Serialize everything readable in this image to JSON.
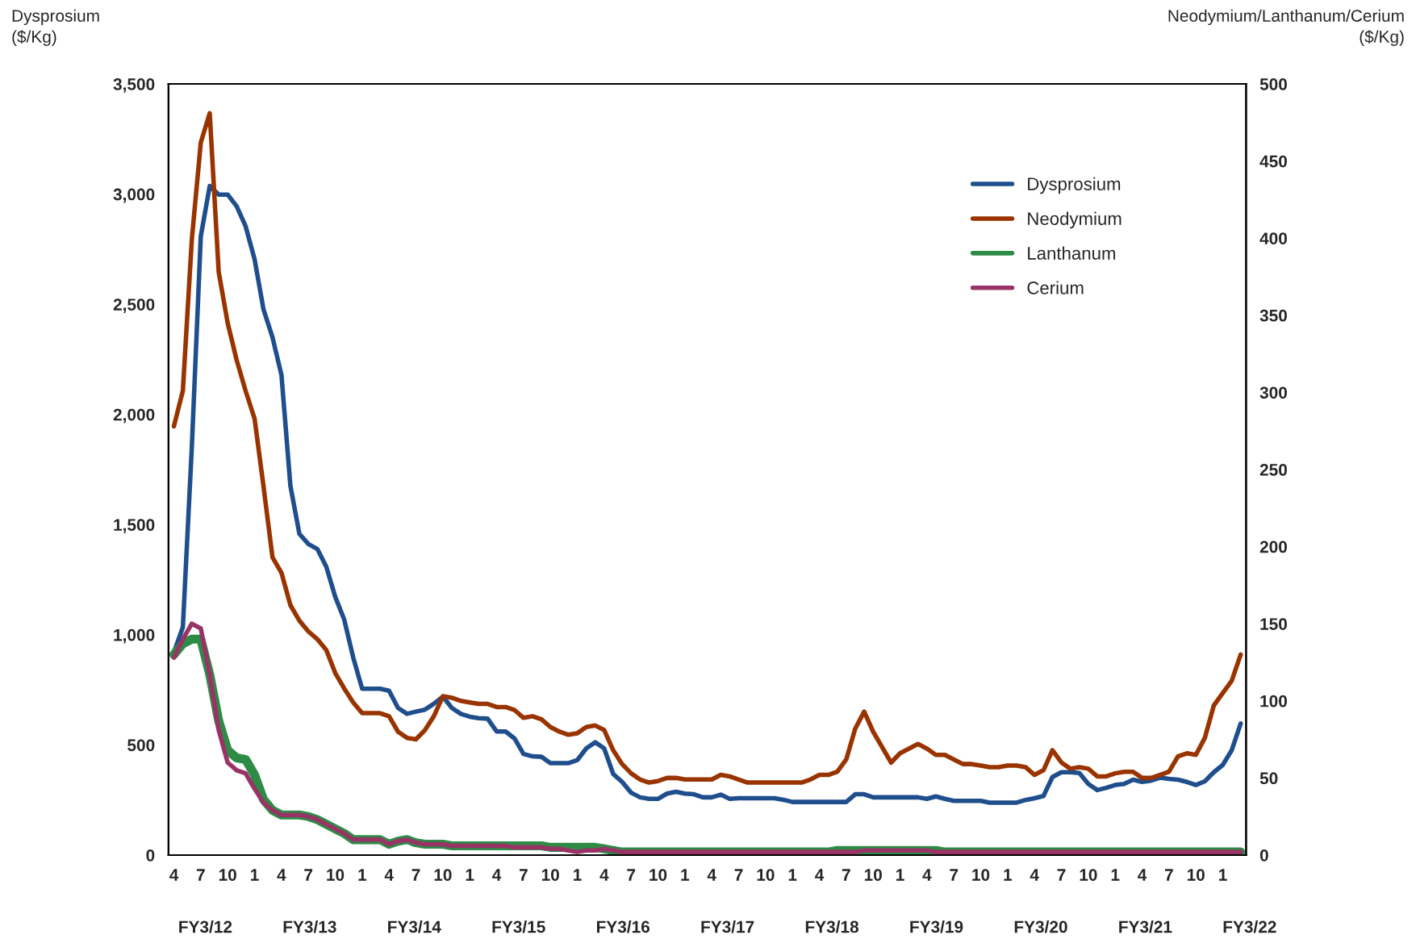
{
  "chart_data": {
    "type": "line",
    "ylabel": "Dysprosium\n($/Kg)",
    "y2label": "Neodymium/Lanthanum/Cerium\n($/Kg)",
    "categories": [
      "4",
      null,
      null,
      "7",
      null,
      null,
      "10",
      null,
      null,
      "1",
      null,
      null,
      "4",
      null,
      null,
      "7",
      null,
      null,
      "10",
      null,
      null,
      "1",
      null,
      null,
      "4",
      null,
      null,
      "7",
      null,
      null,
      "10",
      null,
      null,
      "1",
      null,
      null,
      "4",
      null,
      null,
      "7",
      null,
      null,
      "10",
      null,
      null,
      "1",
      null,
      null,
      "4",
      null,
      null,
      "7",
      null,
      null,
      "10",
      null,
      null,
      "1",
      null,
      null,
      "4",
      null,
      null,
      "7",
      null,
      null,
      "10",
      null,
      null,
      "1",
      null,
      null,
      "4",
      null,
      null,
      "7",
      null,
      null,
      "10",
      null,
      null,
      "1",
      null,
      null,
      "4",
      null,
      null,
      "7",
      null,
      null,
      "10",
      null,
      null,
      "1",
      null,
      null,
      "4",
      null,
      null,
      "7",
      null,
      null,
      "10",
      null,
      null,
      "1",
      null,
      null,
      "4",
      null,
      null,
      "7",
      null,
      null,
      "10",
      null,
      null,
      "1",
      null,
      null
    ],
    "series": [
      {
        "name": "Dysprosium",
        "color": "#1f4e8c",
        "values": [
          920,
          1034,
          1850,
          2808,
          3037,
          2998,
          2998,
          2945,
          2854,
          2705,
          2476,
          2350,
          2179,
          1675,
          1458,
          1412,
          1389,
          1309,
          1172,
          1069,
          897,
          755,
          755,
          755,
          746,
          668,
          641,
          651,
          660,
          687,
          719,
          668,
          641,
          628,
          621,
          619,
          561,
          561,
          529,
          459,
          448,
          446,
          417,
          417,
          417,
          431,
          484,
          512,
          484,
          368,
          332,
          283,
          262,
          255,
          255,
          279,
          287,
          279,
          276,
          262,
          262,
          274,
          255,
          258,
          258,
          258,
          258,
          258,
          251,
          241,
          241,
          241,
          241,
          241,
          241,
          241,
          276,
          276,
          262,
          262,
          262,
          262,
          262,
          262,
          255,
          266,
          255,
          246,
          246,
          246,
          246,
          238,
          238,
          238,
          238,
          250,
          258,
          268,
          354,
          376,
          376,
          372,
          323,
          295,
          305,
          318,
          323,
          342,
          332,
          338,
          351,
          346,
          342,
          332,
          318,
          335,
          376,
          409,
          476,
          597
        ]
      },
      {
        "name": "Neodymium",
        "color": "#993300",
        "axis": "y2",
        "values": [
          278,
          301,
          399,
          462,
          481,
          378,
          345,
          321,
          301,
          283,
          239,
          193,
          183,
          162,
          152,
          145,
          140,
          133,
          118,
          108,
          99,
          92,
          92,
          92,
          90,
          80,
          76,
          75,
          81,
          90,
          103,
          102,
          100,
          99,
          98,
          98,
          96,
          96,
          94,
          89,
          90,
          88,
          83,
          80,
          78,
          79,
          83,
          84,
          81,
          68,
          59,
          53,
          49,
          47,
          48,
          50,
          50,
          49,
          49,
          49,
          49,
          52,
          51,
          49,
          47,
          47,
          47,
          47,
          47,
          47,
          47,
          49,
          52,
          52,
          54,
          62,
          82,
          93,
          80,
          70,
          60,
          66,
          69,
          72,
          69,
          65,
          65,
          62,
          59,
          59,
          58,
          57,
          57,
          58,
          58,
          57,
          52,
          55,
          68,
          60,
          56,
          57,
          56,
          51,
          51,
          53,
          54,
          54,
          50,
          50,
          52,
          54,
          64,
          66,
          65,
          76,
          97,
          105,
          113,
          130
        ]
      },
      {
        "name": "Lanthanum",
        "color": "#2e8b46",
        "axis": "y2",
        "values": [
          130,
          137,
          140,
          140,
          117,
          87,
          68,
          63,
          62,
          52,
          36,
          29,
          26,
          26,
          26,
          25,
          23,
          20,
          17,
          14,
          10,
          10,
          10,
          10,
          7,
          9,
          10,
          8,
          7,
          7,
          7,
          6,
          6,
          6,
          6,
          6,
          6,
          6,
          6,
          6,
          6,
          6,
          5,
          5,
          5,
          5,
          5,
          5,
          4,
          3,
          2,
          2,
          2,
          2,
          2,
          2,
          2,
          2,
          2,
          2,
          2,
          2,
          2,
          2,
          2,
          2,
          2,
          2,
          2,
          2,
          2,
          2,
          2,
          2,
          3,
          3,
          3,
          3,
          3,
          3,
          3,
          3,
          3,
          3,
          3,
          3,
          2,
          2,
          2,
          2,
          2,
          2,
          2,
          2,
          2,
          2,
          2,
          2,
          2,
          2,
          2,
          2,
          2,
          2,
          2,
          2,
          2,
          2,
          2,
          2,
          2,
          2,
          2,
          2,
          2,
          2,
          2,
          2,
          2,
          2
        ]
      },
      {
        "name": "Cerium",
        "color": "#993366",
        "axis": "y2",
        "values": [
          128,
          140,
          150,
          147,
          117,
          81,
          60,
          55,
          53,
          43,
          34,
          29,
          26,
          26,
          26,
          25,
          23,
          20,
          17,
          14,
          10,
          10,
          10,
          10,
          7,
          9,
          10,
          8,
          7,
          7,
          7,
          6,
          6,
          6,
          6,
          6,
          6,
          6,
          5,
          5,
          5,
          5,
          4,
          4,
          3,
          2,
          3,
          3,
          4,
          3,
          2,
          2,
          2,
          2,
          2,
          2,
          2,
          2,
          2,
          2,
          2,
          2,
          2,
          2,
          2,
          2,
          2,
          2,
          2,
          2,
          2,
          2,
          2,
          2,
          2,
          2,
          2,
          3,
          3,
          3,
          3,
          3,
          3,
          3,
          3,
          2,
          2,
          2,
          2,
          2,
          2,
          2,
          2,
          2,
          2,
          2,
          2,
          2,
          2,
          2,
          2,
          2,
          2,
          2,
          2,
          2,
          2,
          2,
          2,
          2,
          2,
          2,
          2,
          2,
          2,
          2,
          2,
          2,
          2,
          2
        ]
      }
    ],
    "ylim": [
      0,
      3500
    ],
    "yticks": [
      0,
      {
        "value": 500,
        "label": "500"
      },
      {
        "value": 1000,
        "label": "1,000"
      },
      {
        "value": 1500,
        "label": "1,500"
      },
      {
        "value": 2000,
        "label": "2,000"
      },
      {
        "value": 2500,
        "label": "2,500"
      },
      {
        "value": 3000,
        "label": "3,000"
      },
      {
        "value": 3500,
        "label": "3,500"
      }
    ],
    "y2lim": [
      0,
      500
    ],
    "y2ticks": [
      0,
      50,
      100,
      150,
      200,
      250,
      300,
      350,
      400,
      450,
      500
    ],
    "annotations": [
      "FY3/12",
      "FY3/13",
      "FY3/14",
      "FY3/15",
      "FY3/16",
      "FY3/17",
      "FY3/18",
      "FY3/19",
      "FY3/20",
      "FY3/21",
      "FY3/22"
    ],
    "legend": "top right",
    "grid": false
  }
}
